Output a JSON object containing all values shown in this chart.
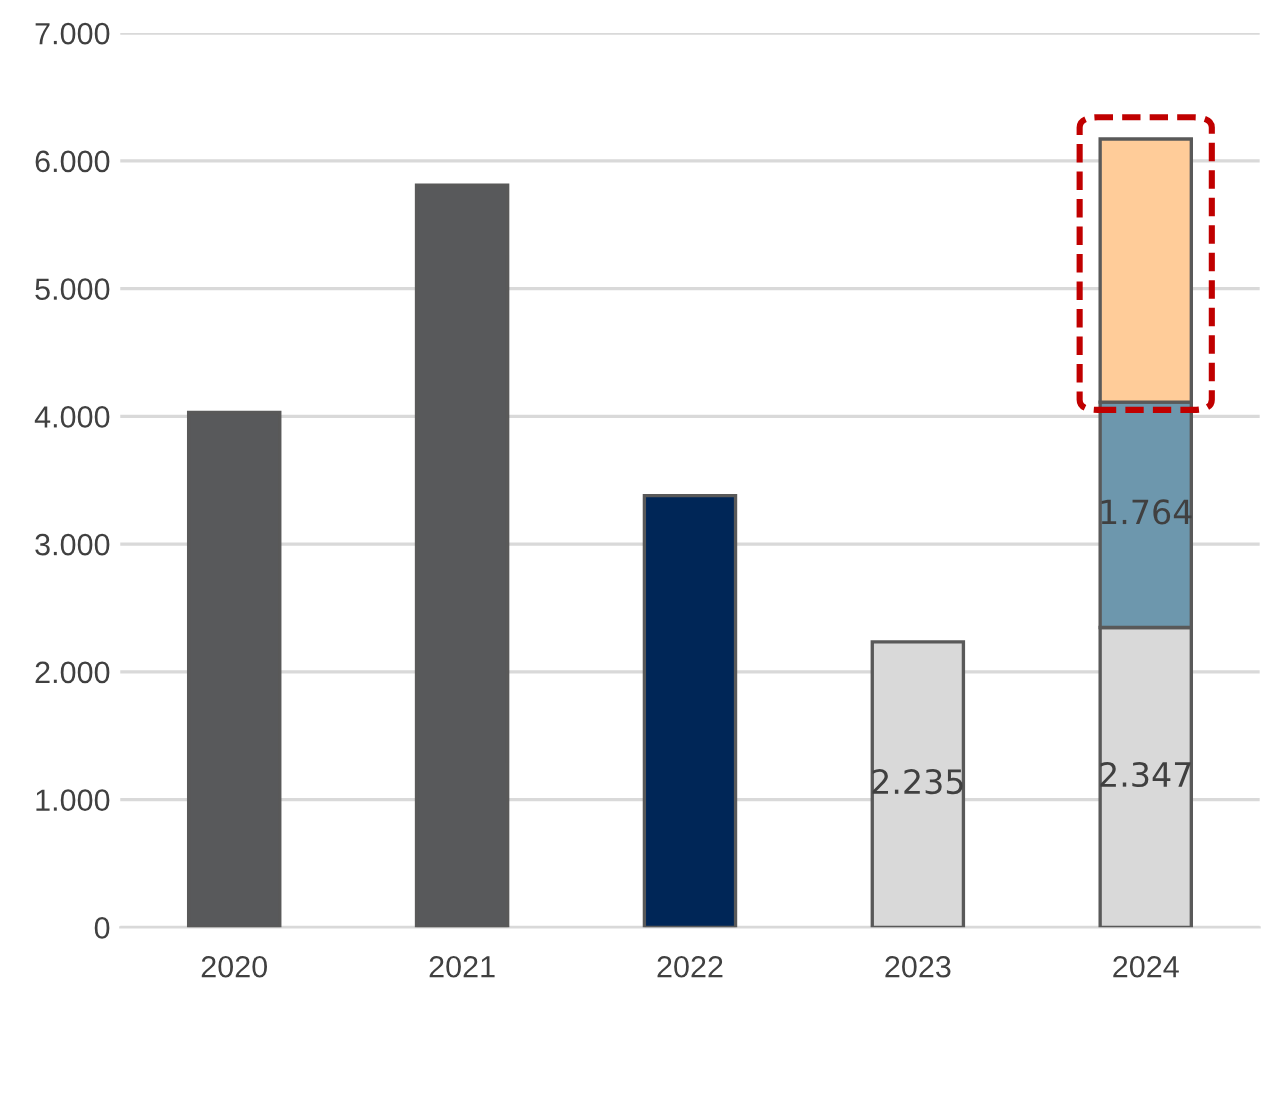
{
  "chart_data": {
    "type": "bar",
    "stacked": true,
    "categories": [
      "2020",
      "2021",
      "2022",
      "2023",
      "2024"
    ],
    "series": [
      {
        "color": "#58595b",
        "values": [
          4030,
          5810,
          null,
          null,
          null
        ]
      },
      {
        "color": "#002657",
        "values": [
          null,
          null,
          3380,
          null,
          null
        ]
      },
      {
        "color": "#d9d9d9",
        "values": [
          null,
          null,
          null,
          2235,
          2347
        ],
        "value_labels": [
          null,
          null,
          null,
          "2.235",
          "2.347"
        ]
      },
      {
        "color": "#6d97ad",
        "values": [
          null,
          null,
          null,
          null,
          1764
        ],
        "value_labels": [
          null,
          null,
          null,
          null,
          "1.764"
        ]
      },
      {
        "color": "#ffcc99",
        "values": [
          null,
          null,
          null,
          null,
          2060
        ]
      }
    ],
    "ylim": [
      0,
      7000
    ],
    "yticks": [
      {
        "value": 0,
        "label": "0"
      },
      {
        "value": 1000,
        "label": "1.000"
      },
      {
        "value": 2000,
        "label": "2.000"
      },
      {
        "value": 3000,
        "label": "3.000"
      },
      {
        "value": 4000,
        "label": "4.000"
      },
      {
        "value": 5000,
        "label": "5.000"
      },
      {
        "value": 6000,
        "label": "6.000"
      },
      {
        "value": 7000,
        "label": "7.000"
      }
    ],
    "grid": "y",
    "legend": false
  }
}
